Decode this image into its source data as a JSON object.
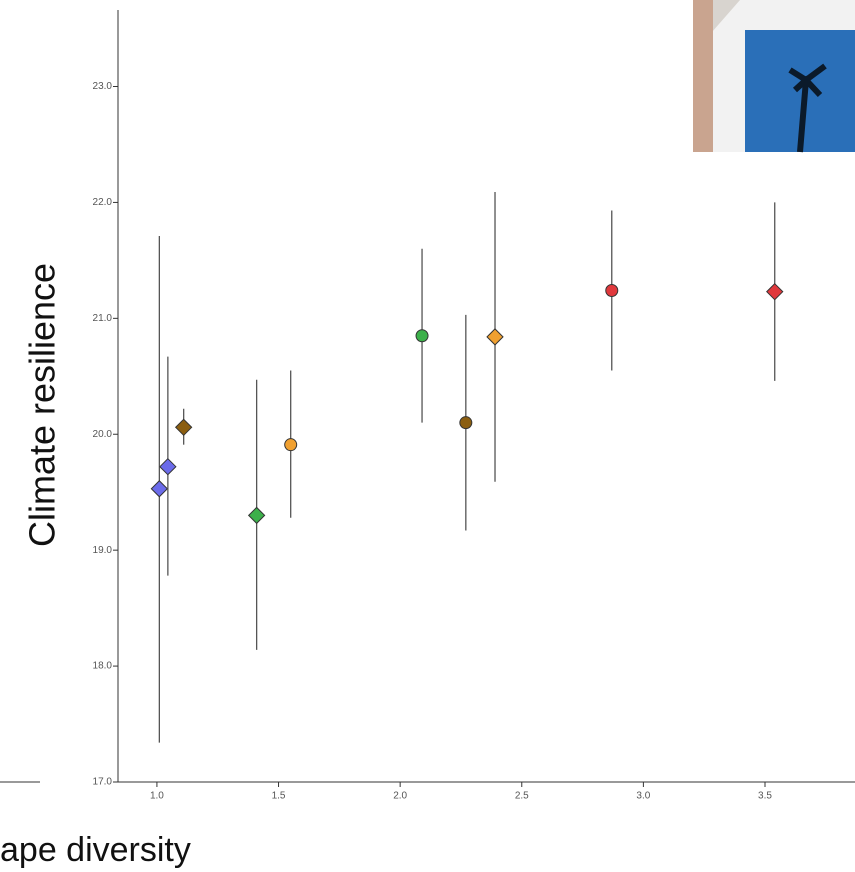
{
  "chart_data": {
    "type": "errorbar",
    "ylabel": "Climate resilience",
    "xlabel": "ape diversity",
    "xlim": [
      0.84,
      3.87
    ],
    "ylim": [
      17,
      23.66
    ],
    "xticks": [
      {
        "value": 1,
        "label": "1.0"
      },
      {
        "value": 1.5,
        "label": "1.5"
      },
      {
        "value": 2,
        "label": "2.0"
      },
      {
        "value": 2.5,
        "label": "2.5"
      },
      {
        "value": 3,
        "label": "3.0"
      },
      {
        "value": 3.5,
        "label": "3.5"
      }
    ],
    "yticks": [
      {
        "value": 17,
        "label": "17.0"
      },
      {
        "value": 18,
        "label": "18.0"
      },
      {
        "value": 19,
        "label": "19.0"
      },
      {
        "value": 20,
        "label": "20.0"
      },
      {
        "value": 21,
        "label": "21.0"
      },
      {
        "value": 22,
        "label": "22.0"
      },
      {
        "value": 23,
        "label": "23.0"
      }
    ],
    "points": [
      {
        "x": 1.01,
        "y": 19.53,
        "lower": 17.34,
        "upper": 21.71,
        "color": "#6b6bea",
        "marker": "diamond"
      },
      {
        "x": 1.045,
        "y": 19.72,
        "lower": 18.78,
        "upper": 20.67,
        "color": "#6b6bea",
        "marker": "diamond"
      },
      {
        "x": 1.11,
        "y": 20.06,
        "lower": 19.91,
        "upper": 20.22,
        "color": "#8b5e10",
        "marker": "diamond"
      },
      {
        "x": 1.41,
        "y": 19.3,
        "lower": 18.14,
        "upper": 20.47,
        "color": "#3cb04a",
        "marker": "diamond"
      },
      {
        "x": 1.55,
        "y": 19.91,
        "lower": 19.28,
        "upper": 20.55,
        "color": "#f0a030",
        "marker": "circle"
      },
      {
        "x": 2.09,
        "y": 20.85,
        "lower": 20.1,
        "upper": 21.6,
        "color": "#3cb04a",
        "marker": "circle"
      },
      {
        "x": 2.27,
        "y": 20.1,
        "lower": 19.17,
        "upper": 21.03,
        "color": "#8b5e10",
        "marker": "circle"
      },
      {
        "x": 2.39,
        "y": 20.84,
        "lower": 19.59,
        "upper": 22.09,
        "color": "#f0a030",
        "marker": "diamond"
      },
      {
        "x": 2.87,
        "y": 21.24,
        "lower": 20.55,
        "upper": 21.93,
        "color": "#e0383c",
        "marker": "circle"
      },
      {
        "x": 3.54,
        "y": 21.23,
        "lower": 20.46,
        "upper": 22.0,
        "color": "#e0383c",
        "marker": "diamond"
      }
    ]
  }
}
